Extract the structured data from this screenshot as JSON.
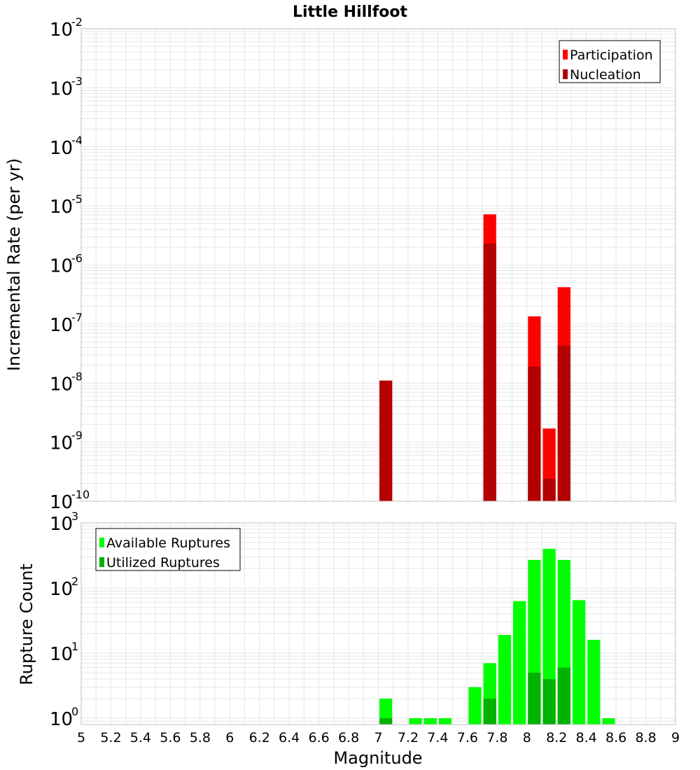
{
  "colors": {
    "participation": "#ff0000",
    "nucleation": "#b30000",
    "available": "#00ff00",
    "utilized": "#00b300",
    "grid": "#e6e6e6",
    "frame": "#bfbfbf"
  },
  "chart_data": [
    {
      "type": "bar",
      "title": "Little Hillfoot",
      "ylabel": "Incremental Rate (per yr)",
      "yscale": "log",
      "ylim": [
        1e-10,
        0.01
      ],
      "xlim": [
        5,
        9
      ],
      "y_ticks": [
        {
          "base": "10",
          "exp": "-10"
        },
        {
          "base": "10",
          "exp": "-9"
        },
        {
          "base": "10",
          "exp": "-8"
        },
        {
          "base": "10",
          "exp": "-7"
        },
        {
          "base": "10",
          "exp": "-6"
        },
        {
          "base": "10",
          "exp": "-5"
        },
        {
          "base": "10",
          "exp": "-4"
        },
        {
          "base": "10",
          "exp": "-3"
        },
        {
          "base": "10",
          "exp": "-2"
        }
      ],
      "legend_position": "top-right",
      "legend": [
        "Participation",
        "Nucleation"
      ],
      "series": [
        {
          "name": "Participation",
          "x": [
            7.05,
            7.75,
            8.05,
            8.15,
            8.25
          ],
          "values": [
            1.1e-08,
            7.2e-06,
            1.35e-07,
            1.7e-09,
            4.2e-07
          ]
        },
        {
          "name": "Nucleation",
          "x": [
            7.05,
            7.75,
            8.05,
            8.15,
            8.25
          ],
          "values": [
            1.1e-08,
            2.3e-06,
            1.9e-08,
            2.4e-10,
            4.3e-08
          ]
        }
      ]
    },
    {
      "type": "bar",
      "xlabel": "Magnitude",
      "ylabel": "Rupture Count",
      "yscale": "log",
      "ylim": [
        0.8,
        1000
      ],
      "xlim": [
        5,
        9
      ],
      "x_ticks": [
        "5",
        "5.2",
        "5.4",
        "5.6",
        "5.8",
        "6",
        "6.2",
        "6.4",
        "6.6",
        "6.8",
        "7",
        "7.2",
        "7.4",
        "7.6",
        "7.8",
        "8",
        "8.2",
        "8.4",
        "8.6",
        "8.8",
        "9"
      ],
      "y_ticks": [
        {
          "base": "10",
          "exp": "0"
        },
        {
          "base": "10",
          "exp": "1"
        },
        {
          "base": "10",
          "exp": "2"
        },
        {
          "base": "10",
          "exp": "3"
        }
      ],
      "legend_position": "top-left",
      "legend": [
        "Available Ruptures",
        "Utilized Ruptures"
      ],
      "series": [
        {
          "name": "Available Ruptures",
          "x": [
            7.05,
            7.25,
            7.35,
            7.45,
            7.65,
            7.75,
            7.85,
            7.95,
            8.05,
            8.15,
            8.25,
            8.35,
            8.45,
            8.55
          ],
          "values": [
            2,
            1,
            1,
            1,
            3,
            7,
            19,
            63,
            270,
            400,
            270,
            65,
            16,
            1
          ]
        },
        {
          "name": "Utilized Ruptures",
          "x": [
            7.05,
            7.75,
            8.05,
            8.15,
            8.25
          ],
          "values": [
            1,
            2,
            5,
            4,
            6
          ]
        }
      ]
    }
  ]
}
